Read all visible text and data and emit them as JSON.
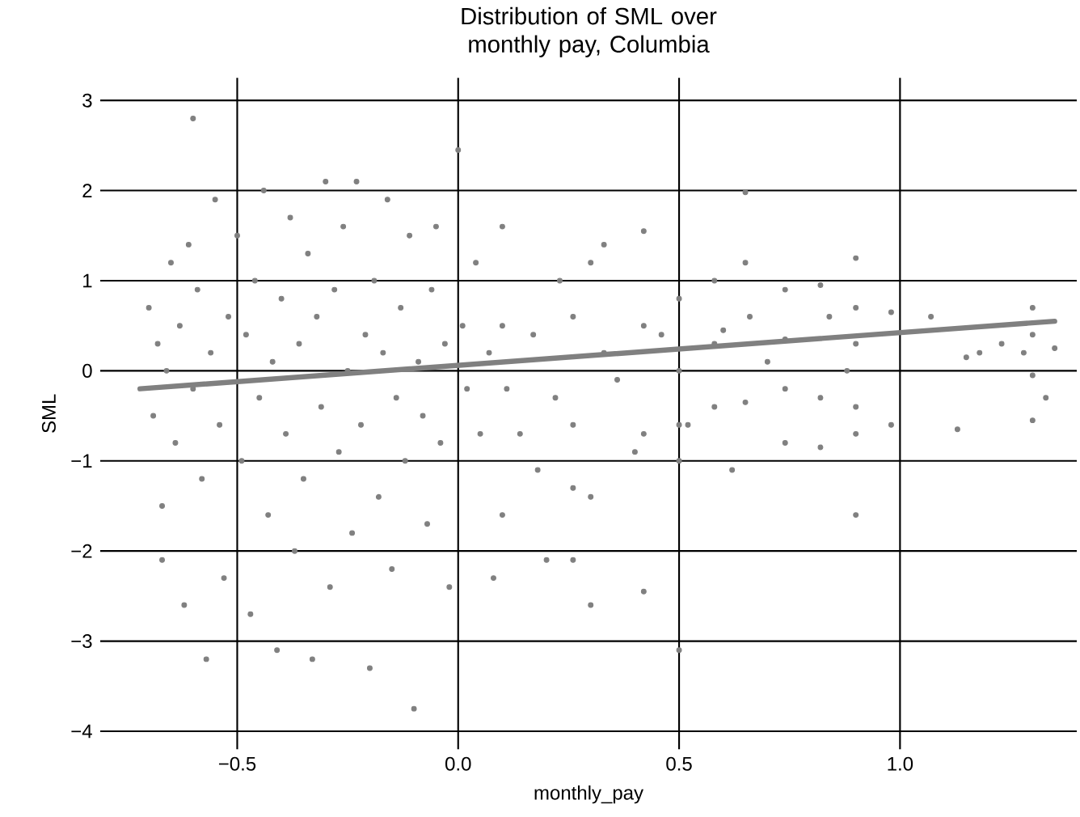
{
  "chart_data": {
    "type": "scatter",
    "title": "Distribution of SML over monthly pay, Columbia",
    "xlabel": "monthly_pay",
    "ylabel": "SML",
    "xlim": [
      -0.81,
      1.4
    ],
    "ylim": [
      -4.2,
      3.25
    ],
    "xticks": [
      {
        "value": -0.5,
        "label": "−0.5"
      },
      {
        "value": 0.0,
        "label": "0.0"
      },
      {
        "value": 0.5,
        "label": "0.5"
      },
      {
        "value": 1.0,
        "label": "1.0"
      }
    ],
    "yticks": [
      {
        "value": -4,
        "label": "−4"
      },
      {
        "value": -3,
        "label": "−3"
      },
      {
        "value": -2,
        "label": "−2"
      },
      {
        "value": -1,
        "label": "−1"
      },
      0,
      1,
      2,
      3
    ],
    "grid": true,
    "series": [
      {
        "marker": "circle",
        "color": "#808080",
        "x": [
          -0.7,
          -0.69,
          -0.68,
          -0.67,
          -0.67,
          -0.66,
          -0.65,
          -0.64,
          -0.63,
          -0.62,
          -0.61,
          -0.6,
          -0.59,
          -0.58,
          -0.57,
          -0.56,
          -0.55,
          -0.54,
          -0.53,
          -0.52,
          -0.5,
          -0.49,
          -0.48,
          -0.47,
          -0.46,
          -0.45,
          -0.44,
          -0.43,
          -0.42,
          -0.41,
          -0.4,
          -0.39,
          -0.38,
          -0.37,
          -0.36,
          -0.35,
          -0.34,
          -0.33,
          -0.32,
          -0.31,
          -0.3,
          -0.29,
          -0.28,
          -0.27,
          -0.26,
          -0.25,
          -0.24,
          -0.23,
          -0.22,
          -0.21,
          -0.2,
          -0.19,
          -0.18,
          -0.17,
          -0.16,
          -0.15,
          -0.14,
          -0.13,
          -0.12,
          -0.11,
          -0.1,
          -0.09,
          -0.08,
          -0.07,
          -0.06,
          -0.05,
          -0.04,
          -0.03,
          -0.02,
          0.0,
          0.01,
          0.02,
          0.04,
          0.05,
          0.07,
          0.08,
          0.1,
          0.1,
          0.1,
          0.11,
          0.14,
          0.17,
          0.18,
          0.2,
          0.22,
          0.23,
          0.26,
          0.26,
          0.26,
          0.26,
          0.3,
          0.3,
          0.3,
          0.33,
          0.33,
          0.36,
          0.42,
          0.42,
          0.42,
          0.42,
          0.4,
          0.46,
          0.5,
          0.5,
          0.5,
          0.5,
          0.5,
          0.52,
          0.58,
          0.58,
          0.58,
          0.6,
          0.62,
          0.65,
          0.65,
          0.65,
          0.66,
          0.7,
          0.74,
          0.74,
          0.74,
          0.74,
          0.82,
          0.82,
          0.82,
          0.84,
          0.88,
          0.9,
          0.9,
          0.9,
          0.9,
          0.9,
          0.9,
          0.98,
          0.98,
          1.07,
          1.13,
          1.15,
          1.18,
          1.23,
          1.28,
          1.3,
          1.3,
          1.3,
          1.3,
          1.33,
          1.35,
          -0.6
        ],
        "values": [
          0.7,
          -0.5,
          0.3,
          -1.5,
          -2.1,
          0.0,
          1.2,
          -0.8,
          0.5,
          -2.6,
          1.4,
          -0.2,
          0.9,
          -1.2,
          -3.2,
          0.2,
          1.9,
          -0.6,
          -2.3,
          0.6,
          1.5,
          -1.0,
          0.4,
          -2.7,
          1.0,
          -0.3,
          2.0,
          -1.6,
          0.1,
          -3.1,
          0.8,
          -0.7,
          1.7,
          -2.0,
          0.3,
          -1.2,
          1.3,
          -3.2,
          0.6,
          -0.4,
          2.1,
          -2.4,
          0.9,
          -0.9,
          1.6,
          0.0,
          -1.8,
          2.1,
          -0.6,
          0.4,
          -3.3,
          1.0,
          -1.4,
          0.2,
          1.9,
          -2.2,
          -0.3,
          0.7,
          -1.0,
          1.5,
          -3.75,
          0.1,
          -0.5,
          -1.7,
          0.9,
          1.6,
          -0.8,
          0.3,
          -2.4,
          2.45,
          0.5,
          -0.2,
          1.2,
          -0.7,
          0.2,
          -2.3,
          1.6,
          -1.6,
          0.5,
          -0.2,
          -0.7,
          0.4,
          -1.1,
          -2.1,
          -0.3,
          1.0,
          0.6,
          -0.6,
          -1.3,
          -2.1,
          -1.4,
          -2.6,
          1.2,
          1.4,
          0.2,
          -0.1,
          1.55,
          0.5,
          -0.7,
          -2.45,
          -0.9,
          0.4,
          0.8,
          0.0,
          -0.6,
          -1.0,
          -3.1,
          -0.6,
          1.0,
          0.3,
          -0.4,
          0.45,
          -1.1,
          1.98,
          1.2,
          -0.35,
          0.6,
          0.1,
          0.9,
          0.35,
          -0.2,
          -0.8,
          0.95,
          -0.3,
          -0.85,
          0.6,
          0.0,
          1.25,
          0.7,
          0.3,
          -0.4,
          -0.7,
          -1.6,
          0.65,
          -0.6,
          0.6,
          -0.65,
          0.15,
          0.2,
          0.3,
          0.2,
          0.7,
          0.4,
          -0.05,
          -0.55,
          -0.3,
          0.25,
          2.8
        ]
      },
      {
        "type": "line",
        "color": "#808080",
        "x": [
          -0.72,
          1.35
        ],
        "values": [
          -0.2,
          0.55
        ]
      }
    ]
  }
}
